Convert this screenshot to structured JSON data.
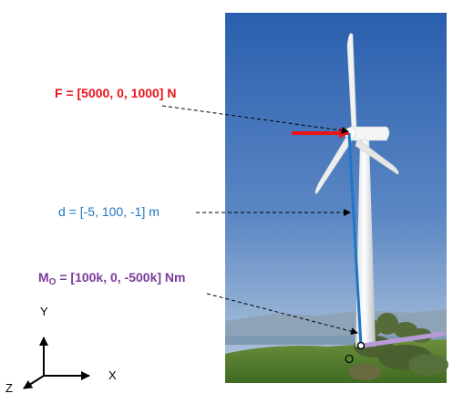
{
  "labels": {
    "force": "F = [5000, 0, 1000] N",
    "distance": "d = [-5, 100, -1] m",
    "moment_prefix": "M",
    "moment_subscript": "O",
    "moment_value": " = [100k, 0, -500k] Nm",
    "origin": "O"
  },
  "axes": {
    "y": "Y",
    "x": "X",
    "z": "Z"
  },
  "colors": {
    "force": "#e8141b",
    "distance": "#1f77c4",
    "moment": "#7a3c9a",
    "sky": "#3f6fb1",
    "grass": "#4f7a2e"
  }
}
